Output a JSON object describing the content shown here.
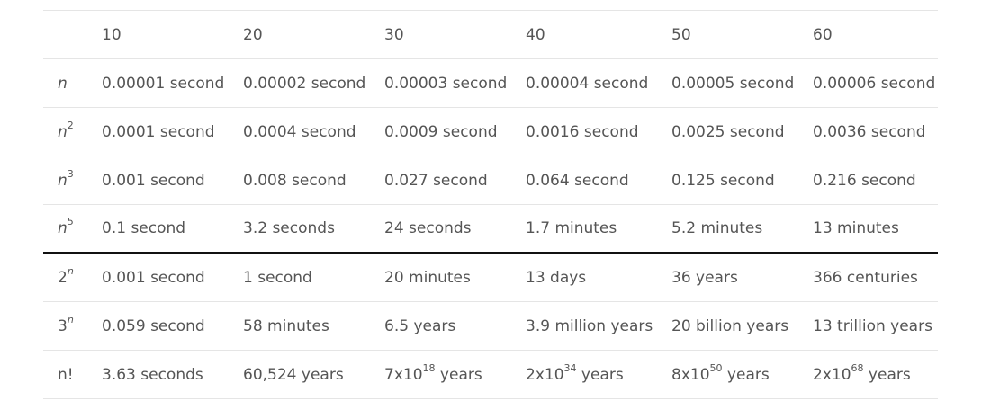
{
  "header": [
    "10",
    "20",
    "30",
    "40",
    "50",
    "60"
  ],
  "rows": [
    {
      "base": "n",
      "exp": "",
      "exp_italic": false,
      "base_italic": true,
      "cells": [
        {
          "text": "0.00001 second"
        },
        {
          "text": "0.00002 second"
        },
        {
          "text": "0.00003 second"
        },
        {
          "text": "0.00004 second"
        },
        {
          "text": "0.00005 second"
        },
        {
          "text": "0.00006 second"
        }
      ]
    },
    {
      "base": "n",
      "exp": "2",
      "exp_italic": false,
      "base_italic": true,
      "cells": [
        {
          "text": "0.0001 second"
        },
        {
          "text": "0.0004 second"
        },
        {
          "text": "0.0009 second"
        },
        {
          "text": "0.0016 second"
        },
        {
          "text": "0.0025 second"
        },
        {
          "text": "0.0036 second"
        }
      ]
    },
    {
      "base": "n",
      "exp": "3",
      "exp_italic": false,
      "base_italic": true,
      "cells": [
        {
          "text": "0.001 second"
        },
        {
          "text": "0.008 second"
        },
        {
          "text": "0.027 second"
        },
        {
          "text": "0.064 second"
        },
        {
          "text": "0.125 second"
        },
        {
          "text": "0.216 second"
        }
      ]
    },
    {
      "base": "n",
      "exp": "5",
      "exp_italic": false,
      "base_italic": true,
      "cells": [
        {
          "text": "0.1 second"
        },
        {
          "text": "3.2 seconds"
        },
        {
          "text": "24 seconds"
        },
        {
          "text": "1.7 minutes"
        },
        {
          "text": "5.2 minutes"
        },
        {
          "text": "13 minutes"
        }
      ]
    },
    {
      "base": "2",
      "exp": "n",
      "exp_italic": true,
      "base_italic": false,
      "thick_top": true,
      "cells": [
        {
          "text": "0.001 second"
        },
        {
          "text": "1 second"
        },
        {
          "text": "20 minutes"
        },
        {
          "text": "13 days"
        },
        {
          "text": "36 years"
        },
        {
          "text": "366 centuries"
        }
      ]
    },
    {
      "base": "3",
      "exp": "n",
      "exp_italic": true,
      "base_italic": false,
      "cells": [
        {
          "text": "0.059 second"
        },
        {
          "text": "58 minutes"
        },
        {
          "text": "6.5 years"
        },
        {
          "text": "3.9 million years"
        },
        {
          "text": "20 billion years"
        },
        {
          "text": "13 trillion years"
        }
      ]
    },
    {
      "base": "n!",
      "exp": "",
      "exp_italic": false,
      "base_italic": false,
      "cells": [
        {
          "text": "3.63 seconds"
        },
        {
          "text": "60,524 years"
        },
        {
          "pre": "7x10",
          "sup": "18",
          "post": " years"
        },
        {
          "pre": "2x10",
          "sup": "34",
          "post": " years"
        },
        {
          "pre": "8x10",
          "sup": "50",
          "post": " years"
        },
        {
          "pre": "2x10",
          "sup": "68",
          "post": " years"
        }
      ]
    }
  ]
}
